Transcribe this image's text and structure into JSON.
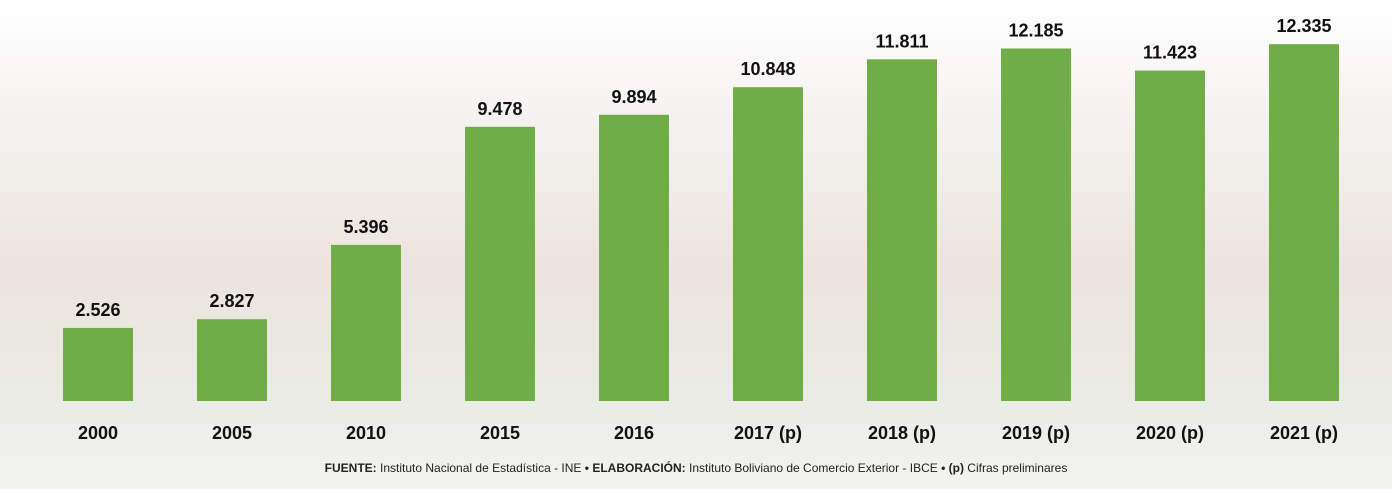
{
  "chart_data": {
    "type": "bar",
    "categories": [
      "2000",
      "2005",
      "2010",
      "2015",
      "2016",
      "2017 (p)",
      "2018 (p)",
      "2019 (p)",
      "2020 (p)",
      "2021 (p)"
    ],
    "values": [
      2.526,
      2.827,
      5.396,
      9.478,
      9.894,
      10.848,
      11.811,
      12.185,
      11.423,
      12.335
    ],
    "color": "#70ad47",
    "ylim": [
      0,
      14
    ],
    "footer": [
      {
        "text": "FUENTE:",
        "bold": true
      },
      {
        "text": " Instituto Nacional de Estadística - INE ",
        "bold": false
      },
      {
        "text": "• ELABORACIÓN:",
        "bold": true
      },
      {
        "text": " Instituto Boliviano de Comercio Exterior - IBCE ",
        "bold": false
      },
      {
        "text": "• (p)",
        "bold": true
      },
      {
        "text": " Cifras preliminares",
        "bold": false
      }
    ]
  }
}
